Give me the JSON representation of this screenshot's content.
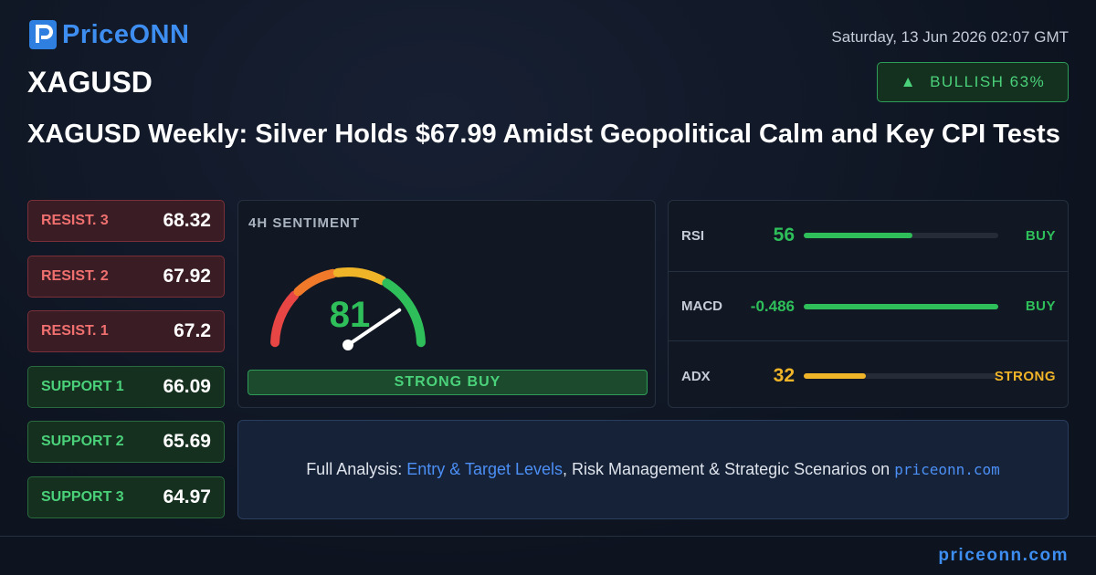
{
  "header": {
    "logo": "PriceONN",
    "datetime": "Saturday, 13 Jun 2026 02:07 GMT",
    "symbol": "XAGUSD",
    "badge": "BULLISH 63%"
  },
  "title": "XAGUSD Weekly: Silver Holds $67.99 Amidst Geopolitical Calm and Key CPI Tests",
  "levels": [
    {
      "label": "RESIST. 3",
      "value": 68.32
    },
    {
      "label": "RESIST. 2",
      "value": 67.92
    },
    {
      "label": "RESIST. 1",
      "value": 67.2
    },
    {
      "label": "SUPPORT 1",
      "value": 66.09
    },
    {
      "label": "SUPPORT 2",
      "value": 65.69
    },
    {
      "label": "SUPPORT 3",
      "value": 64.97
    }
  ],
  "sentiment": {
    "label": "4H SENTIMENT",
    "value": 81,
    "verdict": "STRONG BUY"
  },
  "indicators": [
    {
      "name": "RSI",
      "value": 56,
      "signal": "BUY"
    },
    {
      "name": "MACD",
      "value": -0.486,
      "signal": "BUY"
    },
    {
      "name": "ADX",
      "value": 32,
      "signal": "STRONG"
    }
  ],
  "cta": {
    "lead": "Full Analysis:",
    "link": "Entry & Target Levels",
    "middle": ", Risk Management & Strategic Scenarios on",
    "site": "priceonn.com"
  },
  "footer": "priceonn.com"
}
